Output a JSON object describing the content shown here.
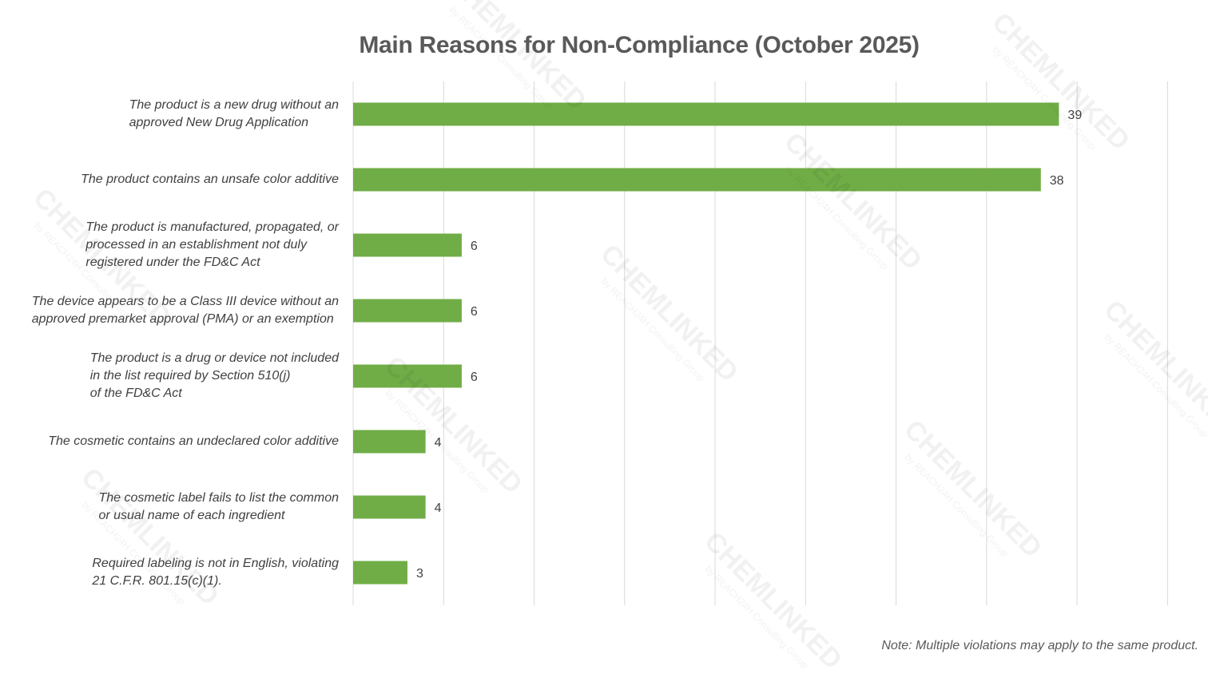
{
  "chart_data": {
    "type": "bar",
    "orientation": "horizontal",
    "title": "Main Reasons for Non-Compliance (October 2025)",
    "categories": [
      "The product is a new drug without an\napproved New Drug Application",
      "The product contains an unsafe color additive",
      "The product is manufactured, propagated, or\nprocessed in an establishment not duly\nregistered under the FD&C Act",
      "The device appears to be a Class III device without an\napproved premarket approval (PMA) or an exemption",
      "The product is a drug or device not included\nin the list required by Section 510(j)\nof the FD&C Act",
      "The cosmetic contains an undeclared color additive",
      "The cosmetic label fails to list the common\nor usual name of each ingredient",
      "Required labeling is not in English, violating\n21 C.F.R. 801.15(c)(1)."
    ],
    "values": [
      39,
      38,
      6,
      6,
      6,
      4,
      4,
      3
    ],
    "xlim": [
      0,
      46
    ],
    "gridlines": true,
    "data_labels": true,
    "bar_color": "#70AD47",
    "grid_color": "#D9D9D9"
  },
  "note": "Note: Multiple violations may apply to the same product.",
  "watermark": {
    "brand": "CHEMLINKED",
    "sub": "by REACH24H Consulting Group"
  }
}
